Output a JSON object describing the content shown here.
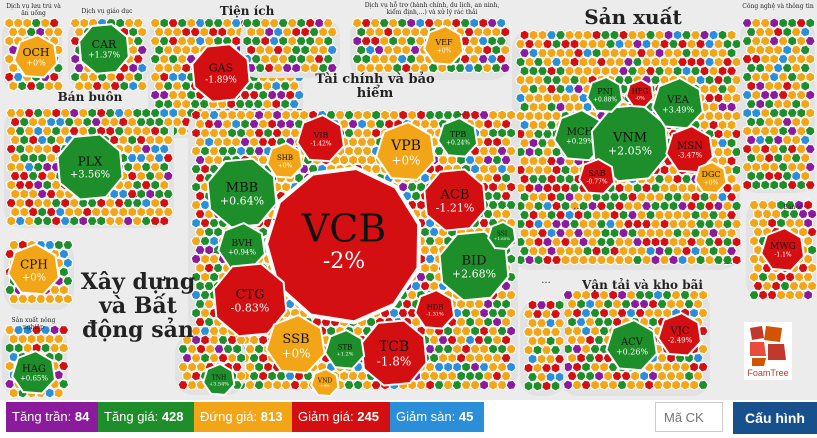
{
  "colors": {
    "ceiling": "#8b1a9c",
    "up": "#1e8e2a",
    "flat": "#f2a516",
    "down": "#d40f12",
    "floor": "#2a8ed8",
    "config": "#17508b"
  },
  "sectors": {
    "s1": "Dịch vụ lưu trú và ăn uống",
    "s2": "Dịch vụ giáo dục",
    "s3": "Tiện ích",
    "s4": "Dịch vụ hỗ trợ (hành chính, du lịch, an ninh, kiểm định,...) và xử lý rác thải",
    "s5": "Sản xuất",
    "s6": "Công nghệ và thông tin",
    "s7": "Bán buôn",
    "s8": "Tài chính và bảo hiểm",
    "s9": "Bán lẻ",
    "s10": "Xây dựng và Bất động sản",
    "s11": "Vận tải và kho bãi",
    "s12": "Sản xuất nông nghiệp"
  },
  "tickers": [
    {
      "code": "VCB",
      "change": "-2%",
      "status": "down"
    },
    {
      "code": "OCH",
      "change": "+0%",
      "status": "flat"
    },
    {
      "code": "CAR",
      "change": "+1.37%",
      "status": "up"
    },
    {
      "code": "GAS",
      "change": "-1.89%",
      "status": "down"
    },
    {
      "code": "VEF",
      "change": "+0%",
      "status": "flat"
    },
    {
      "code": "PLX",
      "change": "+3.56%",
      "status": "up"
    },
    {
      "code": "CPH",
      "change": "+0%",
      "status": "flat"
    },
    {
      "code": "HAG",
      "change": "+0.65%",
      "status": "up"
    },
    {
      "code": "MBB",
      "change": "+0.64%",
      "status": "up"
    },
    {
      "code": "BVH",
      "change": "+0.94%",
      "status": "up"
    },
    {
      "code": "CTG",
      "change": "-0.83%",
      "status": "down"
    },
    {
      "code": "SSB",
      "change": "+0%",
      "status": "flat"
    },
    {
      "code": "TCB",
      "change": "-1.8%",
      "status": "down"
    },
    {
      "code": "BID",
      "change": "+2.68%",
      "status": "up"
    },
    {
      "code": "ACB",
      "change": "-1.21%",
      "status": "down"
    },
    {
      "code": "VPB",
      "change": "+0%",
      "status": "flat"
    },
    {
      "code": "VIB",
      "change": "-1.42%",
      "status": "down"
    },
    {
      "code": "SHB",
      "change": "+0%",
      "status": "flat"
    },
    {
      "code": "TPB",
      "change": "+0.24%",
      "status": "up"
    },
    {
      "code": "HDB",
      "change": "-1.31%",
      "status": "down"
    },
    {
      "code": "STB",
      "change": "+1.2%",
      "status": "up"
    },
    {
      "code": "SSI",
      "change": "+1.65%",
      "status": "up"
    },
    {
      "code": "VND",
      "change": "+0%",
      "status": "flat"
    },
    {
      "code": "MCH",
      "change": "+0.29%",
      "status": "up"
    },
    {
      "code": "VNM",
      "change": "+2.05%",
      "status": "up"
    },
    {
      "code": "VEA",
      "change": "+3.49%",
      "status": "up"
    },
    {
      "code": "MSN",
      "change": "-3.47%",
      "status": "down"
    },
    {
      "code": "PNJ",
      "change": "+0.88%",
      "status": "up"
    },
    {
      "code": "SAB",
      "change": "-0.77%",
      "status": "down"
    },
    {
      "code": "DGC",
      "change": "+0%",
      "status": "flat"
    },
    {
      "code": "HPG",
      "change": "-0%",
      "status": "down"
    },
    {
      "code": "MWG",
      "change": "-1.1%",
      "status": "down"
    },
    {
      "code": "ACV",
      "change": "+0.26%",
      "status": "up"
    },
    {
      "code": "VJC",
      "change": "-2.49%",
      "status": "down"
    },
    {
      "code": "TNH",
      "change": "+3.54%",
      "status": "up"
    }
  ],
  "more_label": "...",
  "stats": {
    "ceiling_label": "Tăng trần:",
    "ceiling_count": "84",
    "up_label": "Tăng giá:",
    "up_count": "428",
    "flat_label": "Đứng giá:",
    "flat_count": "813",
    "down_label": "Giảm giá:",
    "down_count": "245",
    "floor_label": "Giảm sàn:",
    "floor_count": "45"
  },
  "search": {
    "placeholder": "Mã CK"
  },
  "config_label": "Cấu hình",
  "logo_text": "FoamTree"
}
